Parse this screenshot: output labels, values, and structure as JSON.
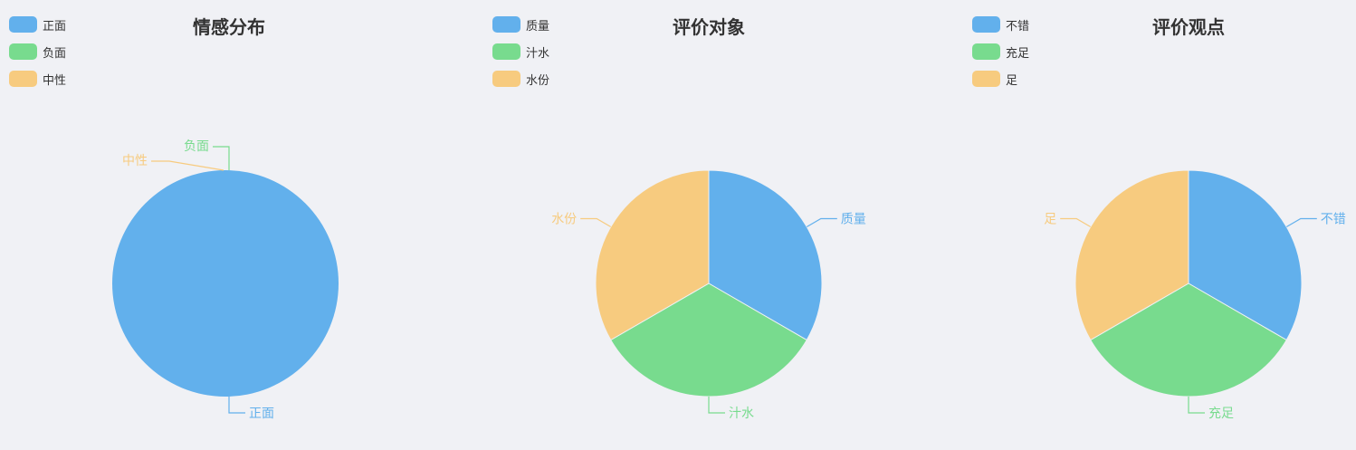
{
  "chart_data": [
    {
      "type": "pie",
      "title": "情感分布",
      "categories": [
        "正面",
        "负面",
        "中性"
      ],
      "values": [
        100,
        0,
        0
      ],
      "colors": [
        "#62b0ec",
        "#78db8e",
        "#f7cb7f"
      ],
      "legend": "top-left"
    },
    {
      "type": "pie",
      "title": "评价对象",
      "categories": [
        "质量",
        "汁水",
        "水份"
      ],
      "values": [
        1,
        1,
        1
      ],
      "colors": [
        "#62b0ec",
        "#78db8e",
        "#f7cb7f"
      ],
      "legend": "top-left"
    },
    {
      "type": "pie",
      "title": "评价观点",
      "categories": [
        "不错",
        "充足",
        "足"
      ],
      "values": [
        1,
        1,
        1
      ],
      "colors": [
        "#62b0ec",
        "#78db8e",
        "#f7cb7f"
      ],
      "legend": "top-left"
    }
  ]
}
